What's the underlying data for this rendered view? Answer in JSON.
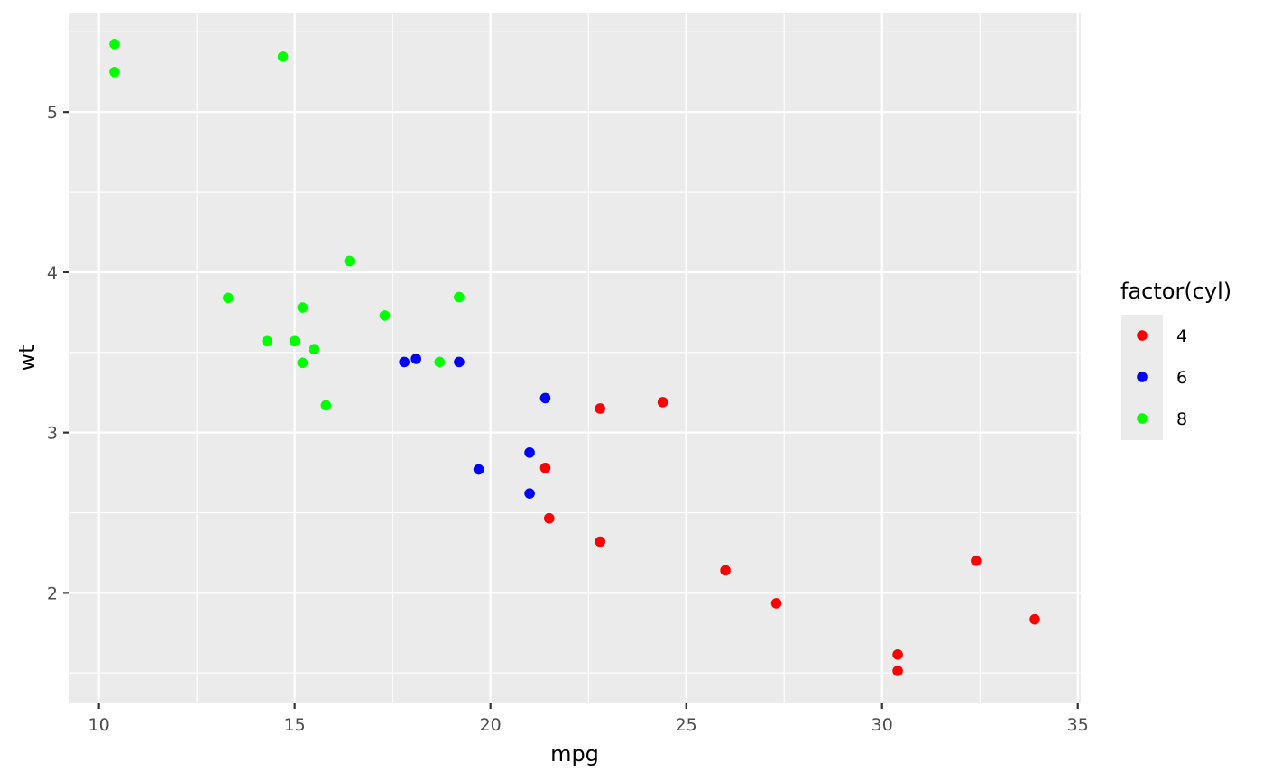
{
  "chart_data": {
    "type": "scatter",
    "xlabel": "mpg",
    "ylabel": "wt",
    "xlim": [
      9.225,
      35.075
    ],
    "ylim": [
      1.31,
      5.62
    ],
    "x_major_ticks": [
      10,
      15,
      20,
      25,
      30,
      35
    ],
    "x_minor_ticks": [
      12.5,
      17.5,
      22.5,
      27.5,
      32.5
    ],
    "y_major_ticks": [
      2,
      3,
      4,
      5
    ],
    "y_minor_ticks": [
      1.5,
      2.5,
      3.5,
      4.5,
      5.5
    ],
    "x_tick_labels": [
      "10",
      "15",
      "20",
      "25",
      "30",
      "35"
    ],
    "y_tick_labels": [
      "2",
      "3",
      "4",
      "5"
    ],
    "grid": true,
    "panel_background": "#ebebeb",
    "grid_color": "#ffffff",
    "legend": {
      "title": "factor(cyl)",
      "position": "right"
    },
    "series": [
      {
        "name": "4",
        "color": "#ff0000",
        "points": [
          [
            22.8,
            2.32
          ],
          [
            24.4,
            3.19
          ],
          [
            22.8,
            3.15
          ],
          [
            32.4,
            2.2
          ],
          [
            30.4,
            1.615
          ],
          [
            33.9,
            1.835
          ],
          [
            21.5,
            2.465
          ],
          [
            27.3,
            1.935
          ],
          [
            26.0,
            2.14
          ],
          [
            30.4,
            1.513
          ],
          [
            21.4,
            2.78
          ]
        ]
      },
      {
        "name": "6",
        "color": "#0000ff",
        "points": [
          [
            21.0,
            2.62
          ],
          [
            21.0,
            2.875
          ],
          [
            21.4,
            3.215
          ],
          [
            18.1,
            3.46
          ],
          [
            19.2,
            3.44
          ],
          [
            17.8,
            3.44
          ],
          [
            19.7,
            2.77
          ]
        ]
      },
      {
        "name": "8",
        "color": "#00ff00",
        "points": [
          [
            18.7,
            3.44
          ],
          [
            14.3,
            3.57
          ],
          [
            16.4,
            4.07
          ],
          [
            17.3,
            3.73
          ],
          [
            15.2,
            3.78
          ],
          [
            10.4,
            5.25
          ],
          [
            10.4,
            5.424
          ],
          [
            14.7,
            5.345
          ],
          [
            15.5,
            3.52
          ],
          [
            15.2,
            3.435
          ],
          [
            13.3,
            3.84
          ],
          [
            19.2,
            3.845
          ],
          [
            15.8,
            3.17
          ],
          [
            15.0,
            3.57
          ]
        ]
      }
    ]
  }
}
